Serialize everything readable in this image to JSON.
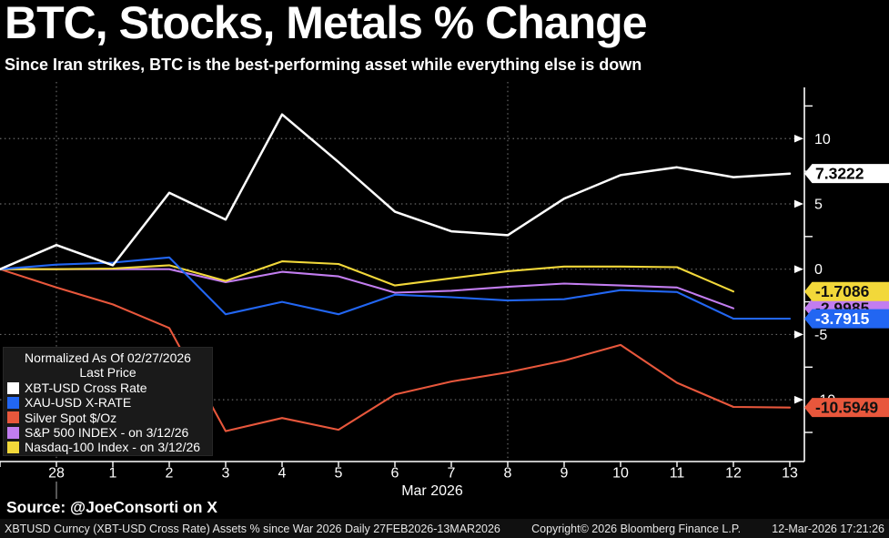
{
  "header": {
    "title": "BTC, Stocks, Metals % Change",
    "subtitle": "Since Iran strikes, BTC is the best-performing asset while everything else is down"
  },
  "legend": {
    "normalized_line": "Normalized As Of 02/27/2026",
    "last_price_line": "Last Price",
    "items": [
      {
        "label": "XBT-USD Cross Rate",
        "color": "#ffffff"
      },
      {
        "label": "XAU-USD X-RATE",
        "color": "#2266f2"
      },
      {
        "label": "Silver Spot $/Oz",
        "color": "#e8573c"
      },
      {
        "label": "S&P 500 INDEX -  on 3/12/26",
        "color": "#c27df0"
      },
      {
        "label": "Nasdaq-100 Index -  on 3/12/26",
        "color": "#f2d83a"
      }
    ]
  },
  "source_line": "Source: @JoeConsorti on X",
  "footer": {
    "left": "XBTUSD Curncy (XBT-USD Cross Rate) Assets % since War 2026 Daily 27FEB2026-13MAR2026",
    "center": "Copyright© 2026 Bloomberg Finance L.P.",
    "right": "12-Mar-2026 17:21:26"
  },
  "chart_data": {
    "type": "line",
    "title": "BTC, Stocks, Metals % Change",
    "categories": [
      "Feb 27",
      "Feb 28",
      "Mar 1",
      "Mar 2",
      "Mar 3",
      "Mar 4",
      "Mar 5",
      "Mar 6",
      "Mar 7",
      "Mar 8",
      "Mar 9",
      "Mar 10",
      "Mar 11",
      "Mar 12",
      "Mar 13"
    ],
    "x_tick_labels": [
      "28",
      "1",
      "2",
      "3",
      "4",
      "5",
      "6",
      "7",
      "8",
      "9",
      "10",
      "11",
      "12",
      "13"
    ],
    "x_axis_label": "Mar 2026",
    "xlabel": "Mar 2026",
    "ylabel": "",
    "ylim": [
      -14.7,
      13.9
    ],
    "y_major_ticks": [
      10,
      5,
      0,
      -5,
      -10
    ],
    "y_minor_ticks": [
      12.5,
      7.5,
      2.5,
      -2.5,
      -7.5,
      -12.5
    ],
    "v_gridline_category_indices": [
      1,
      9
    ],
    "grid": "dotted",
    "legend_position": "bottom-left",
    "axis_side": "right",
    "series": [
      {
        "name": "XBT-USD Cross Rate",
        "color": "#ffffff",
        "badge_text_color": "#000000",
        "last_label": "7.3222",
        "values": [
          0,
          1.85,
          0.3,
          5.85,
          3.8,
          11.85,
          8.2,
          4.4,
          2.9,
          2.6,
          5.4,
          7.2,
          7.8,
          7.05,
          7.3222
        ]
      },
      {
        "name": "XAU-USD X-RATE",
        "color": "#2266f2",
        "badge_text_color": "#ffffff",
        "last_label": "-3.7915",
        "values": [
          0,
          0.35,
          0.5,
          0.9,
          -3.45,
          -2.5,
          -3.45,
          -1.95,
          -2.15,
          -2.4,
          -2.3,
          -1.6,
          -1.75,
          -3.7915,
          -3.7915
        ]
      },
      {
        "name": "Silver Spot $/Oz",
        "color": "#e8573c",
        "badge_text_color": "#111111",
        "last_label": "-10.5949",
        "values": [
          0,
          -1.4,
          -2.7,
          -4.5,
          -12.4,
          -11.4,
          -12.3,
          -9.6,
          -8.6,
          -7.9,
          -7.0,
          -5.8,
          -8.7,
          -10.55,
          -10.5949
        ]
      },
      {
        "name": "S&P 500 INDEX -  on 3/12/26",
        "color": "#c27df0",
        "badge_text_color": "#111111",
        "last_label": "-2.9985",
        "values": [
          0,
          0,
          0,
          0,
          -1.0,
          -0.2,
          -0.55,
          -1.8,
          -1.65,
          -1.35,
          -1.1,
          -1.25,
          -1.4,
          -2.9985
        ]
      },
      {
        "name": "Nasdaq-100 Index -  on 3/12/26",
        "color": "#f2d83a",
        "badge_text_color": "#111111",
        "last_label": "-1.7086",
        "values": [
          0,
          0,
          0.05,
          0.3,
          -0.9,
          0.6,
          0.4,
          -1.25,
          -0.7,
          -0.15,
          0.2,
          0.2,
          0.15,
          -1.7086
        ]
      }
    ]
  }
}
